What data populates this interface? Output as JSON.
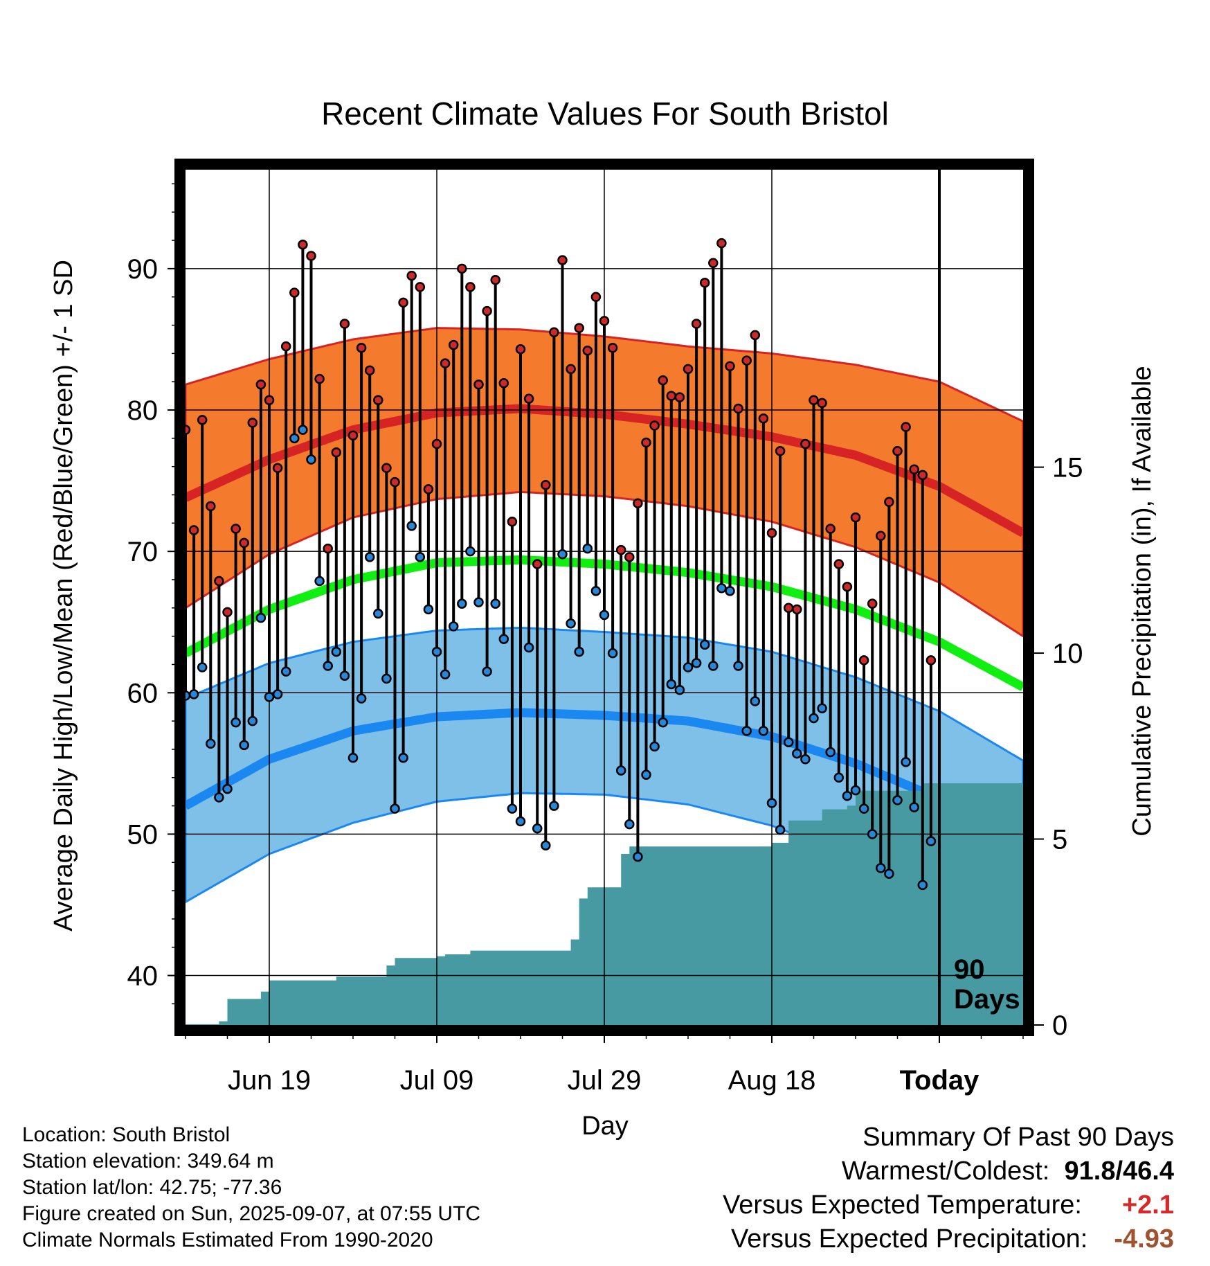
{
  "chart_data": {
    "type": "line",
    "title": "Recent Climate Values For South Bristol",
    "xlabel": "Day",
    "ylabel": "Average Daily High/Low/Mean (Red/Blue/Green) +/- 1 SD",
    "y2label": "Cumulative Precipitation (in), If Available",
    "x_tick_labels": [
      "Jun 19",
      "Jul 09",
      "Jul 29",
      "Aug 18",
      "Today"
    ],
    "x_tick_days": [
      11,
      31,
      51,
      71,
      91
    ],
    "x_range_days": [
      1,
      101
    ],
    "ylim": [
      36.5,
      97
    ],
    "y_ticks": [
      40,
      50,
      60,
      70,
      80,
      90
    ],
    "y2lim": [
      0,
      23
    ],
    "y2_ticks": [
      0,
      5,
      10,
      15
    ],
    "grid": true,
    "today_marker_label": "90\nDays",
    "colors": {
      "high_band": "#f47a2e",
      "high_normal": "#d62424",
      "low_band": "#7fc0e8",
      "low_normal": "#1a88f0",
      "mean_normal": "#11ee11",
      "precip": "#4799a2",
      "high_dot": "#cc2a2a",
      "low_dot": "#2a86d6"
    },
    "normals": {
      "days": [
        1,
        11,
        21,
        31,
        41,
        51,
        61,
        71,
        81,
        91,
        101
      ],
      "high_mean": [
        73.8,
        76.5,
        78.6,
        79.8,
        80.1,
        79.7,
        79.0,
        78.1,
        76.8,
        74.6,
        71.3
      ],
      "high_upper": [
        81.8,
        83.6,
        85.0,
        85.8,
        85.7,
        85.2,
        84.5,
        84.0,
        83.2,
        82.0,
        79.2
      ],
      "high_lower": [
        66.0,
        69.8,
        72.4,
        73.7,
        74.2,
        73.9,
        73.2,
        72.1,
        70.3,
        67.8,
        64.0
      ],
      "mean_normal": [
        62.8,
        65.9,
        68.0,
        69.2,
        69.4,
        69.1,
        68.5,
        67.5,
        65.9,
        63.6,
        60.4
      ],
      "low_mean": [
        52.0,
        55.3,
        57.3,
        58.3,
        58.6,
        58.4,
        58.0,
        56.9,
        55.0,
        52.5,
        49.6
      ],
      "low_upper": [
        59.6,
        62.1,
        63.6,
        64.4,
        64.6,
        64.3,
        63.9,
        62.9,
        61.1,
        58.7,
        55.2
      ],
      "low_lower": [
        45.2,
        48.6,
        50.8,
        52.3,
        52.9,
        52.8,
        52.1,
        50.6,
        48.3,
        45.0,
        41.4
      ]
    },
    "daily_high": [
      78.6,
      71.5,
      79.3,
      73.2,
      67.9,
      65.7,
      71.6,
      70.6,
      79.1,
      81.8,
      80.7,
      75.9,
      84.5,
      88.3,
      91.7,
      90.9,
      82.2,
      70.2,
      77.0,
      86.1,
      78.2,
      84.4,
      82.8,
      80.7,
      75.9,
      74.9,
      87.6,
      89.5,
      88.7,
      74.4,
      77.6,
      83.3,
      84.6,
      90.0,
      88.7,
      81.8,
      87.0,
      89.2,
      81.9,
      72.1,
      84.3,
      80.8,
      69.1,
      74.7,
      85.5,
      90.6,
      82.9,
      85.8,
      84.2,
      88.0,
      86.3,
      84.4,
      70.1,
      69.6,
      73.4,
      77.7,
      78.9,
      82.1,
      81.0,
      80.9,
      82.9,
      86.1,
      89.0,
      90.4,
      91.8,
      83.1,
      80.1,
      83.5,
      85.3,
      79.4,
      71.3,
      77.1,
      66.0,
      65.9,
      77.6,
      80.7,
      80.5,
      71.6,
      69.1,
      67.5,
      72.4,
      62.3,
      66.3,
      71.1,
      73.5,
      77.1,
      78.8,
      75.8,
      75.4,
      62.3
    ],
    "daily_low": [
      59.8,
      59.9,
      61.8,
      56.4,
      52.6,
      53.2,
      57.9,
      56.3,
      58.0,
      65.3,
      59.7,
      59.9,
      61.5,
      78.0,
      78.6,
      76.5,
      67.9,
      61.9,
      62.9,
      61.2,
      55.4,
      59.6,
      69.6,
      65.6,
      61.0,
      51.8,
      55.4,
      71.8,
      69.6,
      65.9,
      62.9,
      61.3,
      64.7,
      66.3,
      70.0,
      66.4,
      61.5,
      66.3,
      63.8,
      51.8,
      50.9,
      63.2,
      50.4,
      49.2,
      52.0,
      69.8,
      64.9,
      62.9,
      70.2,
      67.2,
      65.5,
      62.8,
      54.5,
      50.7,
      48.4,
      54.2,
      56.2,
      57.9,
      60.6,
      60.2,
      61.8,
      62.1,
      63.4,
      61.9,
      67.4,
      67.2,
      61.9,
      57.3,
      59.4,
      57.3,
      52.2,
      50.3,
      56.5,
      55.7,
      55.3,
      58.2,
      58.9,
      55.8,
      54.0,
      52.7,
      53.1,
      51.8,
      50.0,
      47.6,
      47.2,
      52.4,
      55.1,
      51.9,
      46.4,
      49.5
    ],
    "cumulative_precip": [
      0.02,
      0.02,
      0.02,
      0.02,
      0.1,
      0.7,
      0.7,
      0.7,
      0.7,
      0.9,
      1.2,
      1.2,
      1.2,
      1.2,
      1.2,
      1.2,
      1.2,
      1.2,
      1.3,
      1.3,
      1.3,
      1.3,
      1.3,
      1.3,
      1.6,
      1.8,
      1.8,
      1.8,
      1.8,
      1.8,
      1.85,
      1.9,
      1.9,
      1.9,
      2.0,
      2.0,
      2.0,
      2.0,
      2.0,
      2.0,
      2.0,
      2.0,
      2.0,
      2.0,
      2.0,
      2.0,
      2.3,
      3.4,
      3.7,
      3.7,
      3.7,
      3.7,
      4.6,
      4.8,
      4.8,
      4.8,
      4.8,
      4.8,
      4.8,
      4.8,
      4.8,
      4.8,
      4.8,
      4.8,
      4.8,
      4.8,
      4.8,
      4.8,
      4.8,
      4.8,
      4.9,
      4.9,
      5.5,
      5.5,
      5.5,
      5.5,
      5.8,
      5.8,
      5.8,
      5.9,
      6.3,
      6.3,
      6.3,
      6.3,
      6.3,
      6.3,
      6.3,
      6.3,
      6.5,
      6.5,
      6.5,
      6.5,
      6.5,
      6.5,
      6.5,
      6.5,
      6.5,
      6.5,
      6.5,
      6.5
    ]
  },
  "info": {
    "location": "Location: South Bristol",
    "elevation": "Station elevation: 349.64 m",
    "latlon": "Station lat/lon: 42.75; -77.36",
    "created": "Figure created on Sun, 2025-09-07, at 07:55 UTC",
    "normals": "Climate Normals Estimated From 1990-2020"
  },
  "summary": {
    "heading": "Summary Of Past 90 Days",
    "warm_cold_label": "Warmest/Coldest:",
    "warmest": "91.8",
    "separator": "/",
    "coldest": "46.4",
    "temp_label": "Versus Expected Temperature:",
    "temp_value": "+2.1",
    "temp_color": "#d62a2a",
    "precip_label": "Versus Expected Precipitation:",
    "precip_value": "-4.93",
    "precip_color": "#a0522d"
  }
}
